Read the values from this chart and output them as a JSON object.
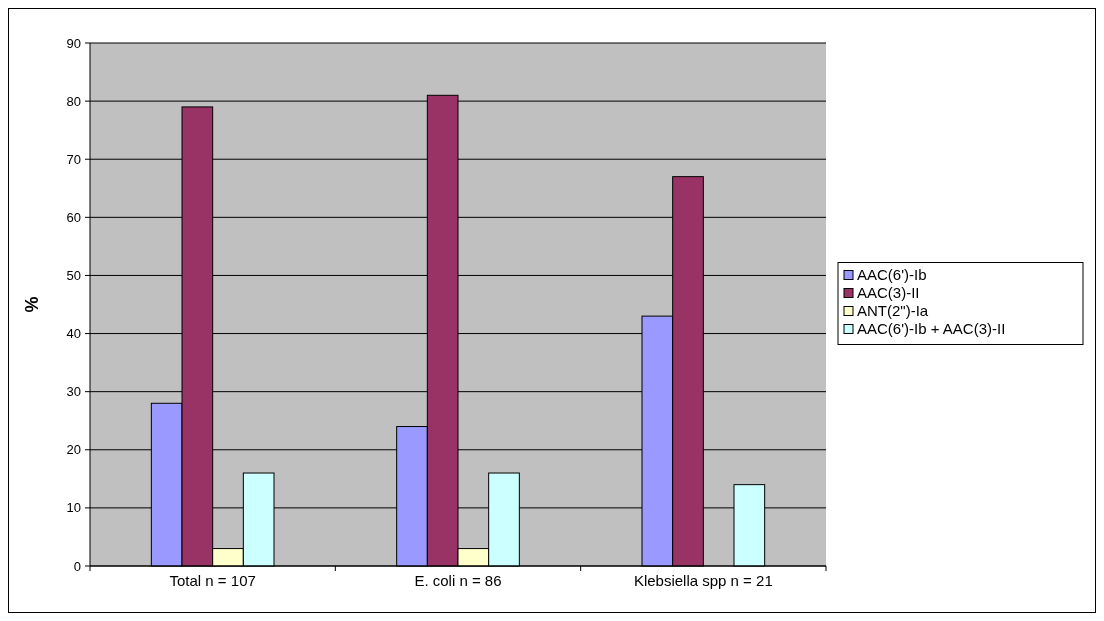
{
  "chart_data": {
    "type": "bar",
    "ylabel": "%",
    "categories": [
      "Total n = 107",
      "E. coli n = 86",
      "Klebsiella spp n = 21"
    ],
    "series": [
      {
        "name": "AAC(6')-Ib",
        "color": "#9999ff",
        "values": [
          28,
          24,
          43
        ]
      },
      {
        "name": "AAC(3)-II",
        "color": "#993366",
        "values": [
          79,
          81,
          67
        ]
      },
      {
        "name": "ANT(2\")-Ia",
        "color": "#ffffcc",
        "values": [
          3,
          3,
          0
        ]
      },
      {
        "name": "AAC(6')-Ib + AAC(3)-II",
        "color": "#ccffff",
        "values": [
          16,
          16,
          14
        ]
      }
    ],
    "ylim": [
      0,
      90
    ],
    "yticks": [
      0,
      10,
      20,
      30,
      40,
      50,
      60,
      70,
      80,
      90
    ],
    "grid": "y",
    "legend": "right"
  }
}
